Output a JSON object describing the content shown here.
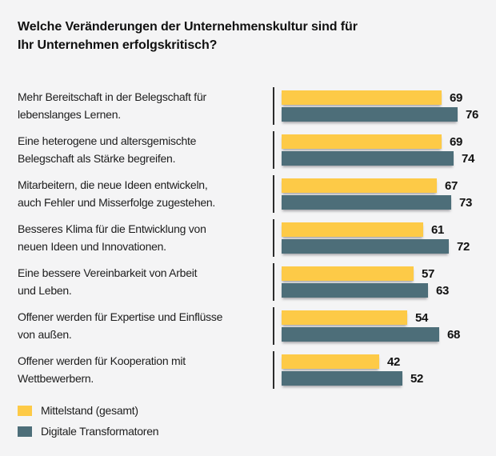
{
  "ui": {
    "title": "Welche Veränderungen der Unternehmenskultur sind für\nIhr Unternehmen erfolgskritisch?",
    "row_label_lines": [
      [
        "Mehr Bereitschaft in der Belegschaft für",
        "lebenslanges Lernen."
      ],
      [
        "Eine heterogene und altersgemischte",
        "Belegschaft als Stärke begreifen."
      ],
      [
        "Mitarbeitern, die neue Ideen entwickeln,",
        "auch Fehler und Misserfolge zugestehen."
      ],
      [
        "Besseres Klima für die Entwicklung von",
        "neuen Ideen und Innovationen."
      ],
      [
        "Eine bessere Vereinbarkeit von Arbeit",
        "und Leben."
      ],
      [
        "Offener werden für Expertise und Einflüsse",
        "von außen."
      ],
      [
        "Offener werden für Kooperation mit",
        "Wettbewerbern."
      ]
    ],
    "background_color": "#f4f4f5",
    "text_color": "#1a1a1a",
    "axis_line_color": "#2c2c2c"
  },
  "chart_data": {
    "type": "bar",
    "orientation": "horizontal",
    "title": "Welche Veränderungen der Unternehmenskultur sind für Ihr Unternehmen erfolgskritisch?",
    "categories": [
      "Mehr Bereitschaft in der Belegschaft für lebenslanges Lernen.",
      "Eine heterogene und altersgemischte Belegschaft als Stärke begreifen.",
      "Mitarbeitern, die neue Ideen entwickeln, auch Fehler und Misserfolge zugestehen.",
      "Besseres Klima für die Entwicklung von neuen Ideen und Innovationen.",
      "Eine bessere Vereinbarkeit von Arbeit und Leben.",
      "Offener werden für Expertise und Einflüsse von außen.",
      "Offener werden für Kooperation mit Wettbewerbern."
    ],
    "series": [
      {
        "name": "Mittelstand (gesamt)",
        "color": "#fdca47",
        "values": [
          69,
          69,
          67,
          61,
          57,
          54,
          42
        ]
      },
      {
        "name": "Digitale Transformatoren",
        "color": "#4d6e79",
        "values": [
          76,
          74,
          73,
          72,
          63,
          68,
          52
        ]
      }
    ],
    "xlim": [
      0,
      80
    ],
    "value_labels": true,
    "grid": false,
    "legend_position": "bottom-left"
  }
}
